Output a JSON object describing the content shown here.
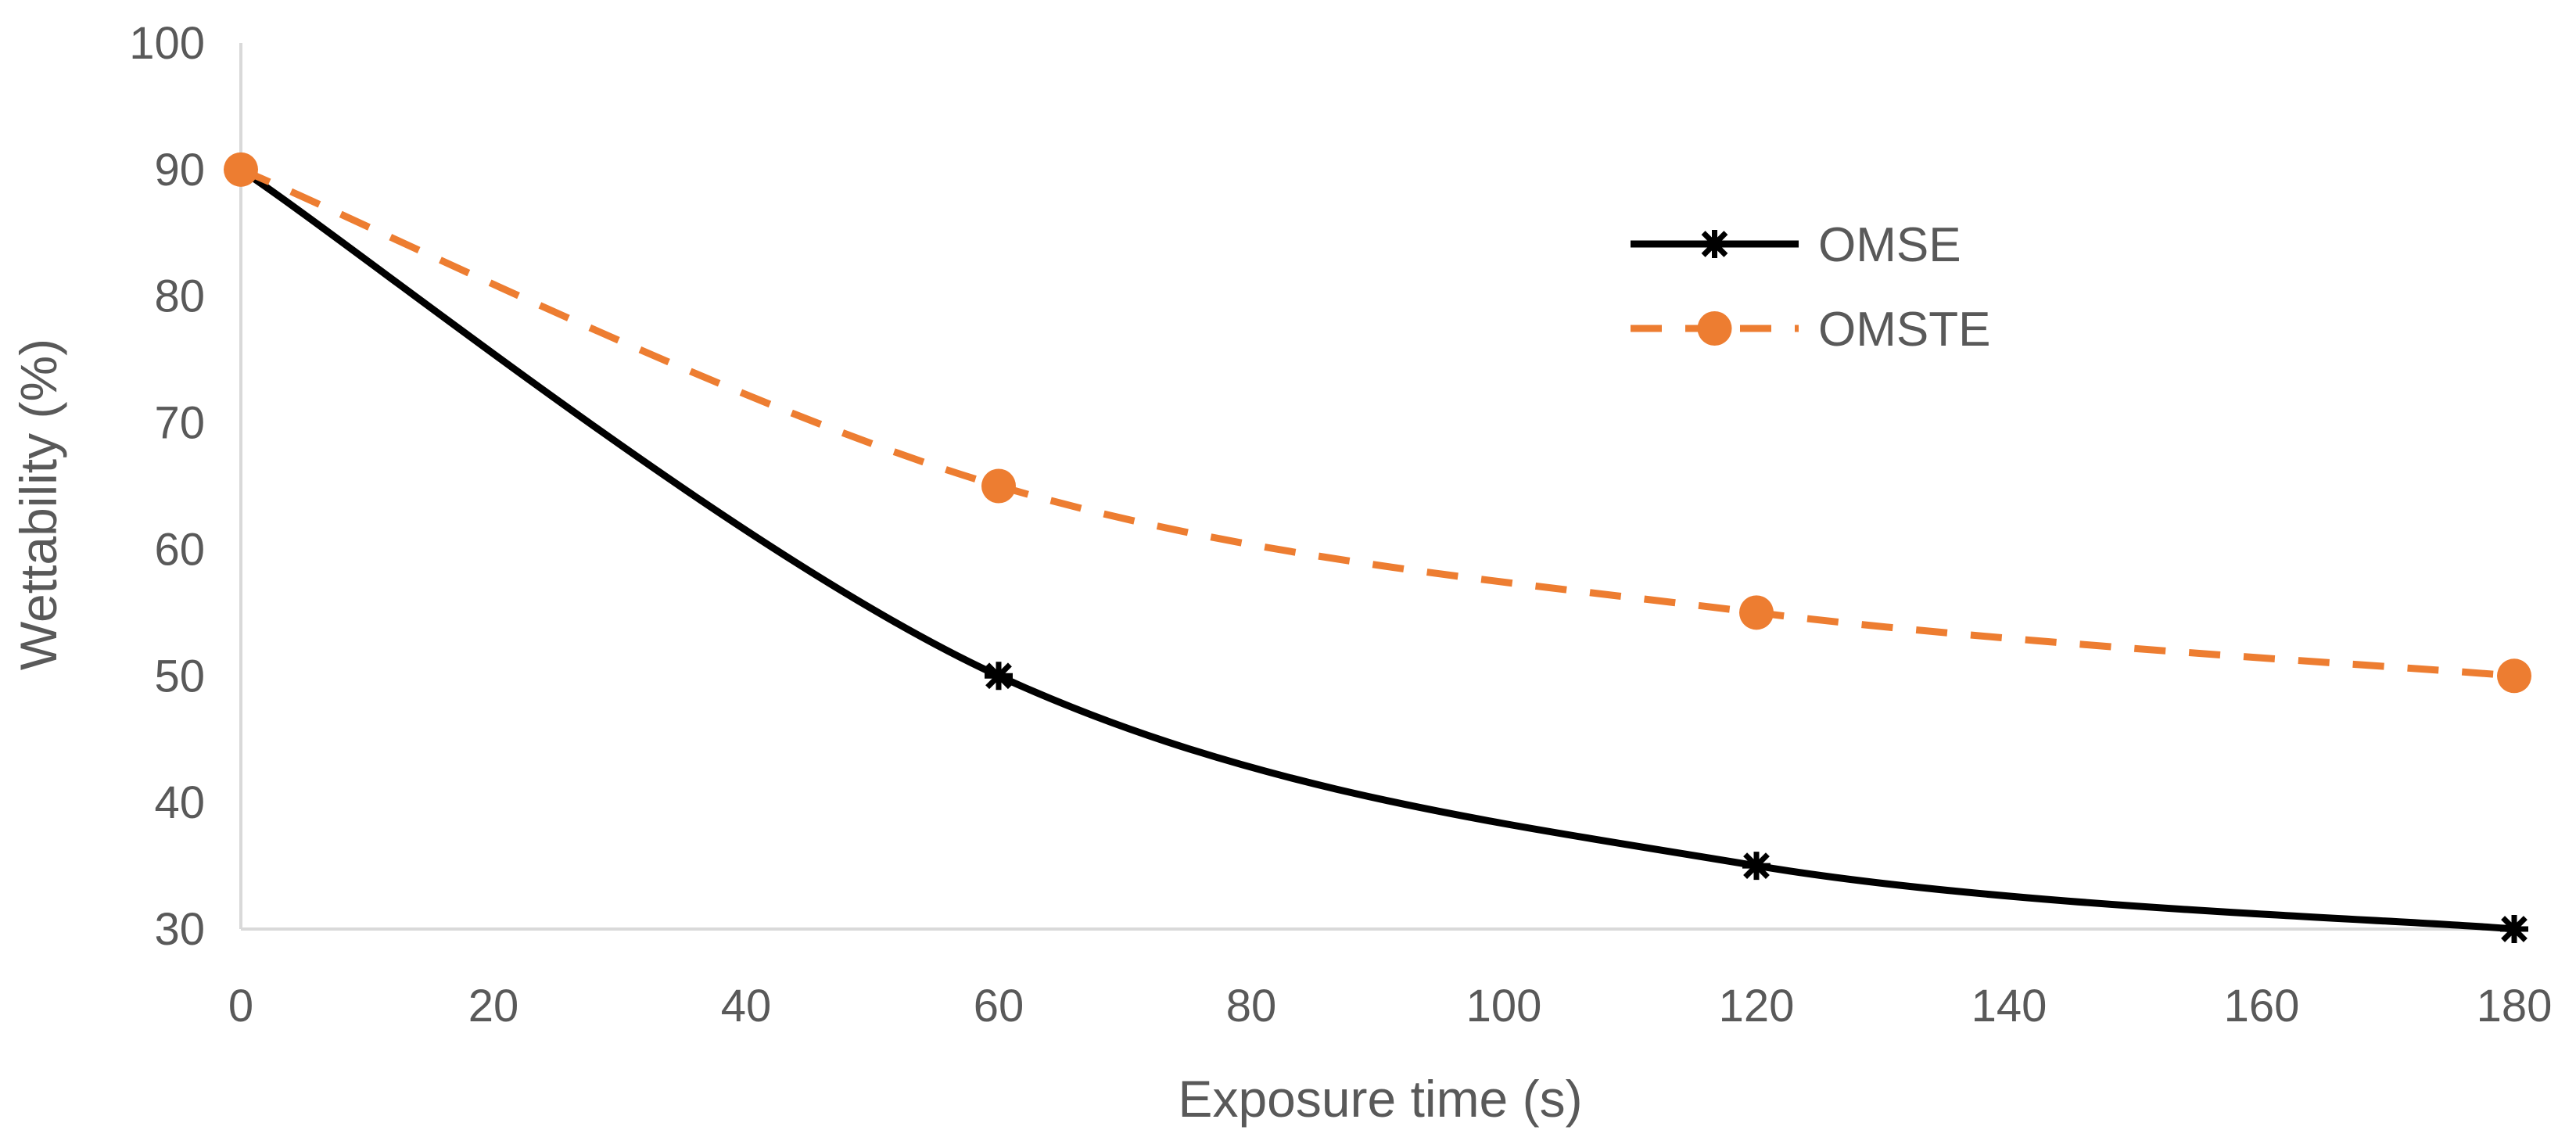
{
  "chart_data": {
    "type": "line",
    "title": "",
    "xlabel": "Exposure time (s)",
    "ylabel": "Wettability (%)",
    "xlim": [
      0,
      180
    ],
    "ylim": [
      30,
      100
    ],
    "xticks": [
      0,
      20,
      40,
      60,
      80,
      100,
      120,
      140,
      160,
      180
    ],
    "yticks": [
      30,
      40,
      50,
      60,
      70,
      80,
      90,
      100
    ],
    "grid": false,
    "legend_position": "top-right",
    "series": [
      {
        "name": "OMSE",
        "color": "#000000",
        "line_style": "solid",
        "marker": "asterisk",
        "smooth": true,
        "x": [
          0,
          60,
          120,
          180
        ],
        "y": [
          90,
          50,
          35,
          30
        ]
      },
      {
        "name": "OMSTE",
        "color": "#ED7D31",
        "line_style": "dashed",
        "marker": "circle",
        "smooth": true,
        "x": [
          0,
          60,
          120,
          180
        ],
        "y": [
          90,
          65,
          55,
          50
        ]
      }
    ]
  }
}
